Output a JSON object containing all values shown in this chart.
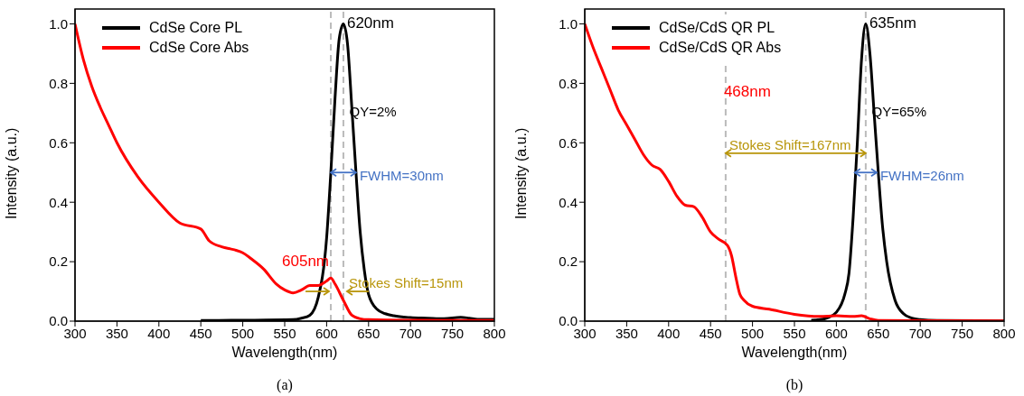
{
  "chart_data": [
    {
      "type": "line",
      "xlabel": "Wavelength(nm)",
      "ylabel": "Intensity (a.u.)",
      "xlim": [
        300,
        800
      ],
      "ylim": [
        0,
        1.05
      ],
      "xticks": [
        300,
        350,
        400,
        450,
        500,
        550,
        600,
        650,
        700,
        750,
        800
      ],
      "yticks": [
        {
          "value": 0,
          "label": "0.0"
        },
        {
          "value": 0.2,
          "label": "0.2"
        },
        {
          "value": 0.4,
          "label": "0.4"
        },
        {
          "value": 0.6,
          "label": "0.6"
        },
        {
          "value": 0.8,
          "label": "0.8"
        },
        {
          "value": 1,
          "label": "1.0"
        }
      ],
      "legend": "top left",
      "series": [
        {
          "name": "CdSe Core PL",
          "color": "#000000",
          "x": [
            450,
            500,
            560,
            570,
            580,
            590,
            600,
            605,
            610,
            615,
            620,
            625,
            630,
            635,
            640,
            645,
            650,
            660,
            670,
            680,
            700,
            720,
            740,
            760,
            770,
            780,
            800
          ],
          "values": [
            0.002,
            0.003,
            0.005,
            0.01,
            0.02,
            0.08,
            0.28,
            0.5,
            0.75,
            0.95,
            1.0,
            0.93,
            0.72,
            0.5,
            0.3,
            0.17,
            0.09,
            0.04,
            0.025,
            0.018,
            0.012,
            0.01,
            0.008,
            0.013,
            0.01,
            0.006,
            0.006
          ]
        },
        {
          "name": "CdSe Core Abs",
          "color": "#ff0000",
          "x": [
            300,
            310,
            320,
            330,
            340,
            350,
            375,
            400,
            425,
            450,
            460,
            475,
            490,
            500,
            510,
            525,
            540,
            550,
            560,
            570,
            580,
            590,
            600,
            605,
            610,
            620,
            630,
            640,
            650,
            700,
            800
          ],
          "values": [
            1.0,
            0.88,
            0.79,
            0.72,
            0.66,
            0.6,
            0.485,
            0.4,
            0.33,
            0.31,
            0.27,
            0.25,
            0.24,
            0.23,
            0.21,
            0.175,
            0.125,
            0.105,
            0.095,
            0.105,
            0.12,
            0.12,
            0.135,
            0.145,
            0.125,
            0.07,
            0.02,
            0.008,
            0.005,
            0.003,
            0.002
          ]
        }
      ],
      "ref_lines": [
        {
          "axis": "x",
          "value": 605,
          "color": "#bbbbbb",
          "line_style": "dashed"
        },
        {
          "axis": "x",
          "value": 620,
          "color": "#bbbbbb",
          "line_style": "dashed"
        }
      ],
      "annotations": [
        {
          "text": "620nm",
          "x": 620,
          "y": 1.0
        },
        {
          "text": "QY=2%",
          "x": 625,
          "y": 0.7
        },
        {
          "text": "FWHM=30nm",
          "x": 635,
          "y": 0.5
        },
        {
          "text": "605nm",
          "x": 605,
          "y": 0.2
        },
        {
          "text": "Stokes Shift=15nm",
          "x": 620,
          "y": 0.1
        },
        "(a)"
      ]
    },
    {
      "type": "line",
      "xlabel": "Wavelength(nm)",
      "ylabel": "Intensity (a.u.)",
      "xlim": [
        300,
        800
      ],
      "ylim": [
        0,
        1.05
      ],
      "xticks": [
        300,
        350,
        400,
        450,
        500,
        550,
        600,
        650,
        700,
        750,
        800
      ],
      "yticks": [
        {
          "value": 0,
          "label": "0.0"
        },
        {
          "value": 0.2,
          "label": "0.2"
        },
        {
          "value": 0.4,
          "label": "0.4"
        },
        {
          "value": 0.6,
          "label": "0.6"
        },
        {
          "value": 0.8,
          "label": "0.8"
        },
        {
          "value": 1,
          "label": "1.0"
        }
      ],
      "legend": "top left",
      "series": [
        {
          "name": "CdSe/CdS QR PL",
          "color": "#000000",
          "x": [
            570,
            580,
            590,
            600,
            610,
            615,
            620,
            625,
            630,
            635,
            640,
            645,
            650,
            655,
            660,
            670,
            680,
            690,
            700,
            720,
            800
          ],
          "values": [
            0.003,
            0.005,
            0.012,
            0.03,
            0.09,
            0.16,
            0.35,
            0.6,
            0.88,
            1.0,
            0.9,
            0.7,
            0.5,
            0.32,
            0.2,
            0.07,
            0.025,
            0.01,
            0.005,
            0.002,
            0.001
          ]
        },
        {
          "name": "CdSe/CdS QR Abs",
          "color": "#ff0000",
          "x": [
            300,
            310,
            320,
            330,
            340,
            350,
            360,
            370,
            380,
            390,
            400,
            410,
            420,
            430,
            440,
            450,
            460,
            470,
            475,
            480,
            485,
            490,
            500,
            520,
            550,
            580,
            600,
            620,
            630,
            640,
            650,
            800
          ],
          "values": [
            1.0,
            0.92,
            0.85,
            0.78,
            0.71,
            0.66,
            0.61,
            0.56,
            0.525,
            0.51,
            0.47,
            0.42,
            0.39,
            0.385,
            0.35,
            0.3,
            0.275,
            0.255,
            0.22,
            0.15,
            0.09,
            0.07,
            0.05,
            0.04,
            0.023,
            0.016,
            0.018,
            0.016,
            0.018,
            0.008,
            0.002,
            0.001
          ]
        }
      ],
      "ref_lines": [
        {
          "axis": "x",
          "value": 468,
          "color": "#bbbbbb",
          "line_style": "dashed"
        },
        {
          "axis": "x",
          "value": 635,
          "color": "#bbbbbb",
          "line_style": "dashed"
        }
      ],
      "annotations": [
        {
          "text": "635nm",
          "x": 635,
          "y": 1.0
        },
        {
          "text": "QY=65%",
          "x": 640,
          "y": 0.7
        },
        {
          "text": "FWHM=26nm",
          "x": 648,
          "y": 0.5
        },
        {
          "text": "468nm",
          "x": 468,
          "y": 0.77
        },
        {
          "text": "Stokes Shift=167nm",
          "x": 468,
          "y": 0.565
        },
        "(b)"
      ]
    }
  ]
}
